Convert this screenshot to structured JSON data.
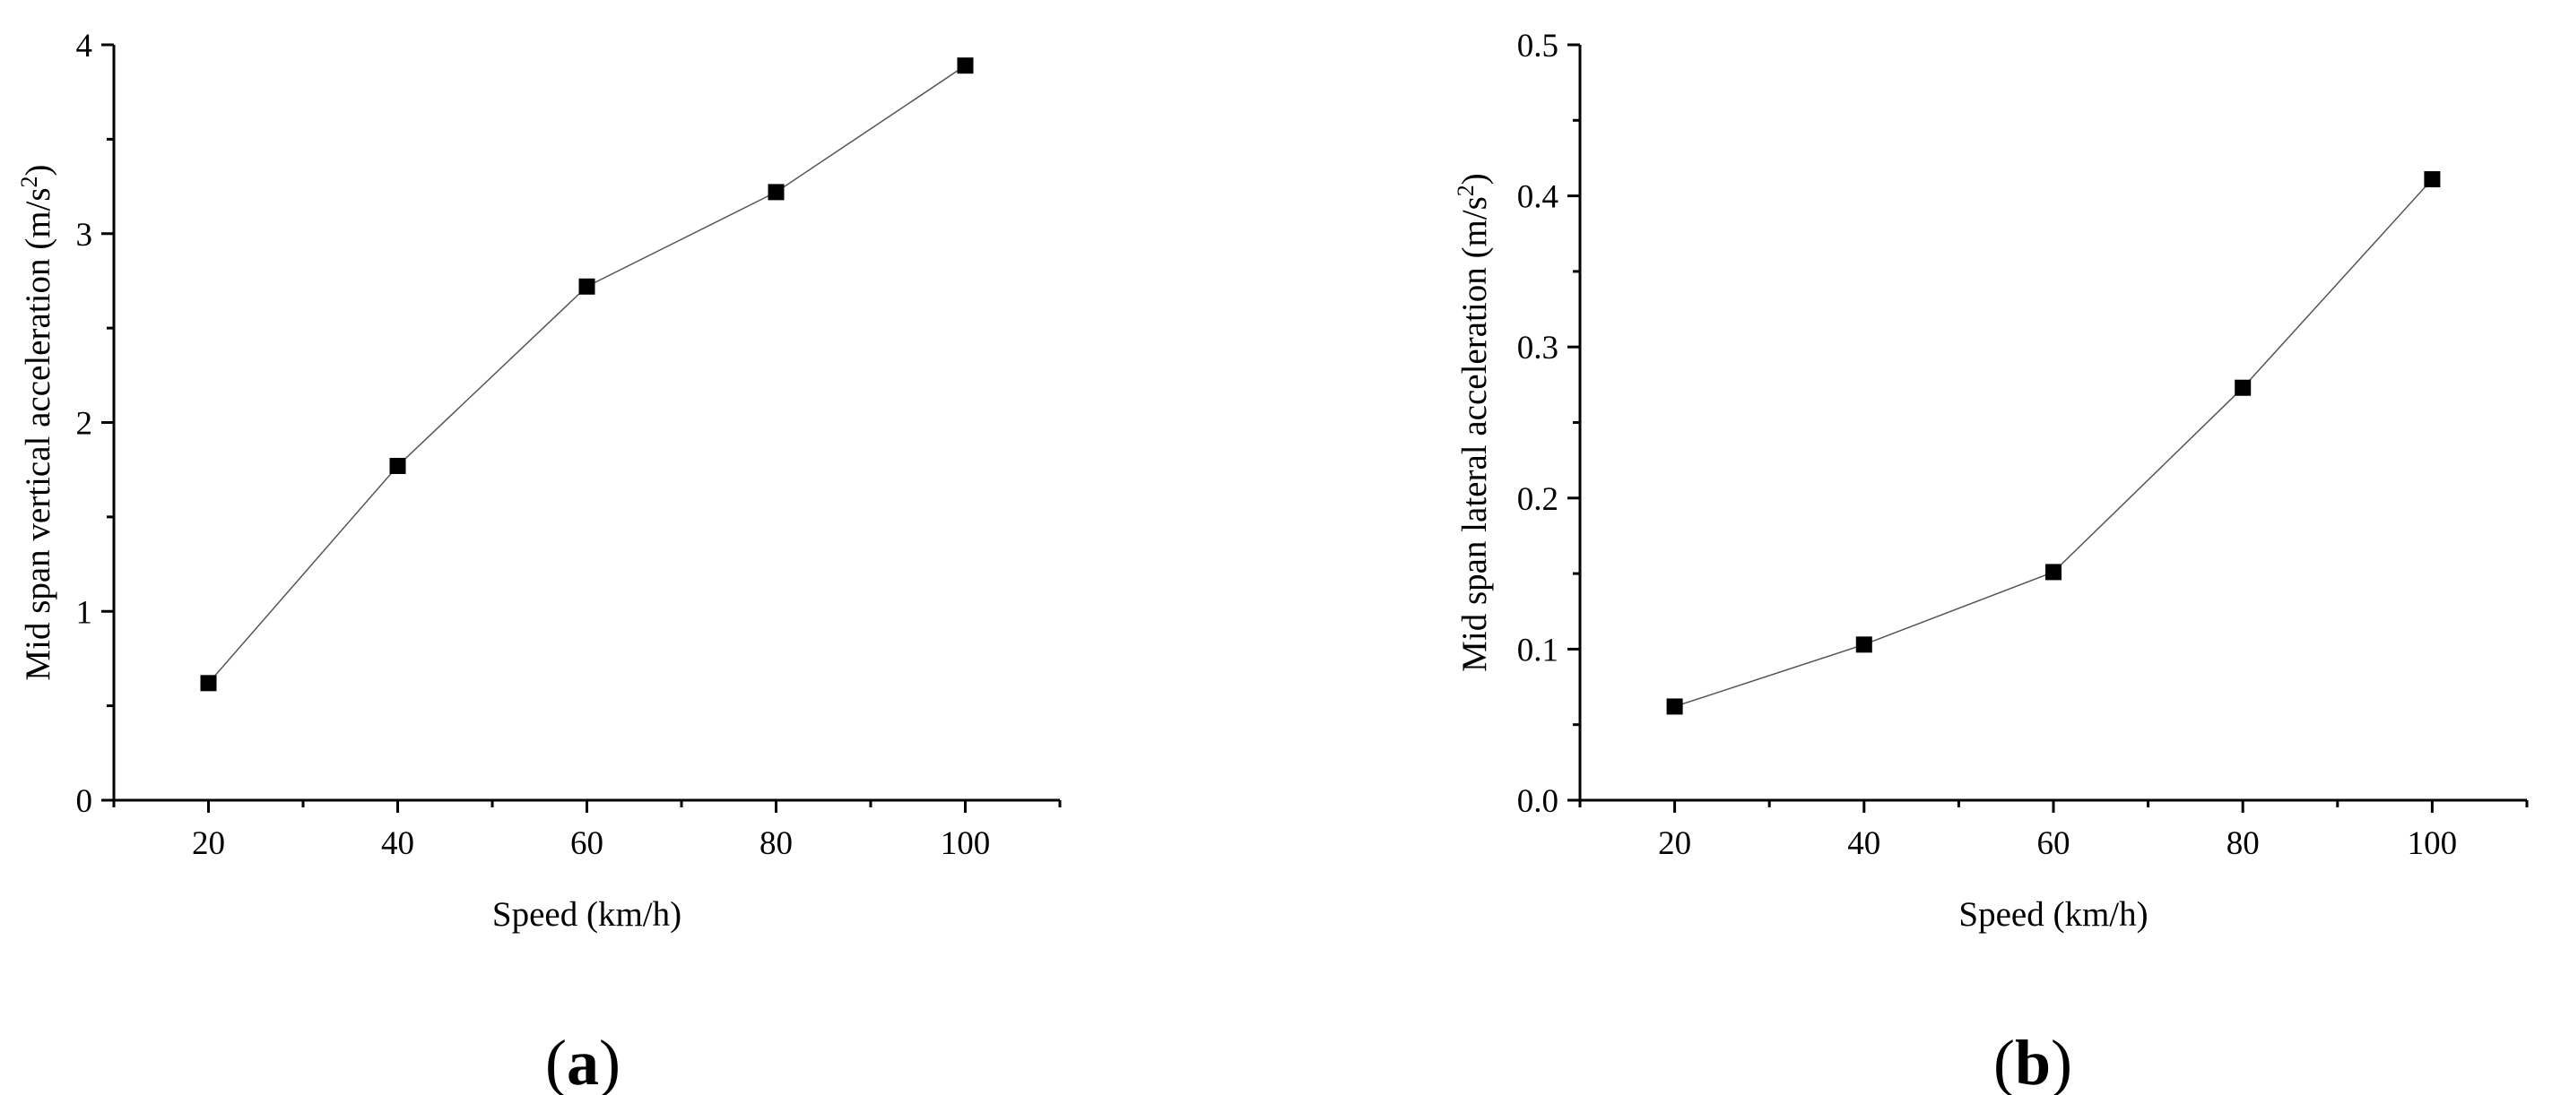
{
  "chart_data": [
    {
      "type": "line",
      "panel_label": "a",
      "xlabel": "Speed (km/h)",
      "ylabel": "Mid span vertical acceleration (m/s",
      "ylabel_superscript": "2",
      "ylabel_suffix": ")",
      "xlim": [
        10,
        110
      ],
      "ylim": [
        0,
        4
      ],
      "x_ticks": [
        20,
        40,
        60,
        80,
        100
      ],
      "x_tick_labels": [
        "20",
        "40",
        "60",
        "80",
        "100"
      ],
      "y_ticks": [
        0,
        1,
        2,
        3,
        4
      ],
      "y_tick_labels": [
        "0",
        "1",
        "2",
        "3",
        "4"
      ],
      "grid": false,
      "marker": "square",
      "series": [
        {
          "x": [
            20,
            40,
            60,
            80,
            100
          ],
          "values": [
            0.62,
            1.77,
            2.72,
            3.22,
            3.89
          ]
        }
      ]
    },
    {
      "type": "line",
      "panel_label": "b",
      "xlabel": "Speed (km/h)",
      "ylabel": "Mid span lateral acceleration (m/s",
      "ylabel_superscript": "2",
      "ylabel_suffix": ")",
      "xlim": [
        10,
        110
      ],
      "ylim": [
        0,
        0.5
      ],
      "x_ticks": [
        20,
        40,
        60,
        80,
        100
      ],
      "x_tick_labels": [
        "20",
        "40",
        "60",
        "80",
        "100"
      ],
      "y_ticks": [
        0,
        0.1,
        0.2,
        0.3,
        0.4,
        0.5
      ],
      "y_tick_labels": [
        "0.0",
        "0.1",
        "0.2",
        "0.3",
        "0.4",
        "0.5"
      ],
      "grid": false,
      "marker": "square",
      "series": [
        {
          "x": [
            20,
            40,
            60,
            80,
            100
          ],
          "values": [
            0.062,
            0.103,
            0.151,
            0.273,
            0.411
          ]
        }
      ]
    }
  ]
}
